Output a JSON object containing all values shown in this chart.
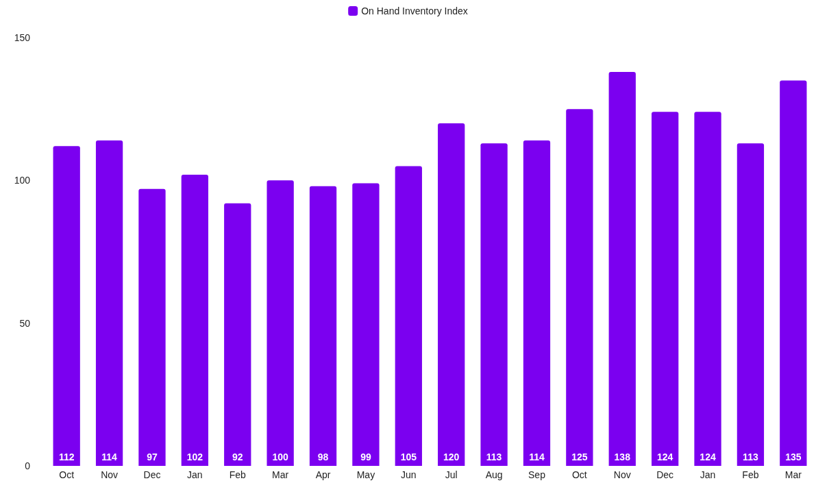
{
  "chart_data": {
    "type": "bar",
    "categories": [
      "Oct",
      "Nov",
      "Dec",
      "Jan",
      "Feb",
      "Mar",
      "Apr",
      "May",
      "Jun",
      "Jul",
      "Aug",
      "Sep",
      "Oct",
      "Nov",
      "Dec",
      "Jan",
      "Feb",
      "Mar"
    ],
    "series": [
      {
        "name": "On Hand Inventory Index",
        "color": "#7b00f0",
        "values": [
          112,
          114,
          97,
          102,
          92,
          100,
          98,
          99,
          105,
          120,
          113,
          114,
          125,
          138,
          124,
          124,
          113,
          135
        ]
      }
    ],
    "ylim": [
      0,
      150
    ],
    "yticks": [
      0,
      50,
      100,
      150
    ],
    "grid": false,
    "legend": "top",
    "data_labels": true
  }
}
